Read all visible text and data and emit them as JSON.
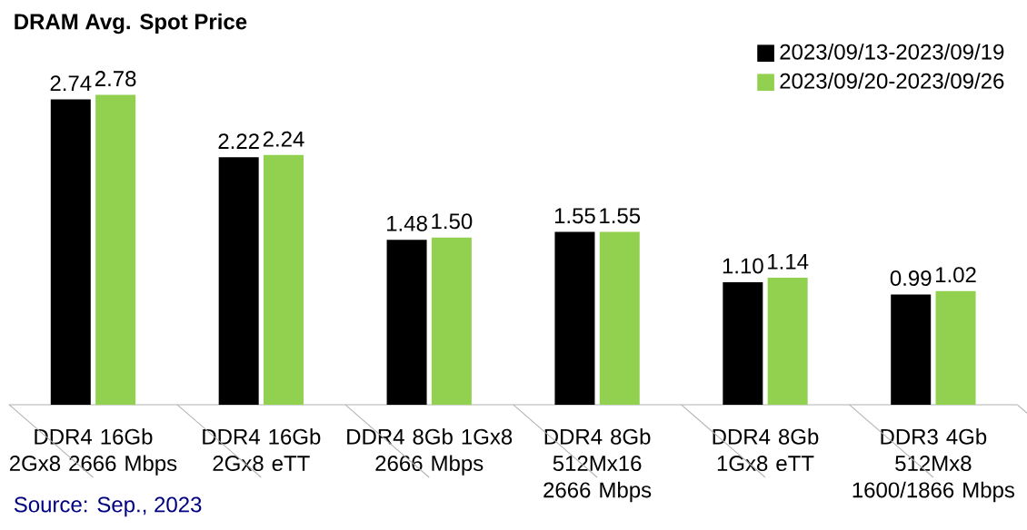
{
  "chart_data": {
    "type": "bar",
    "title": "DRAM Avg. Spot Price",
    "categories": [
      "DDR4 16Gb 2Gx8 2666 Mbps",
      "DDR4 16Gb 2Gx8 eTT",
      "DDR4 8Gb 1Gx8 2666 Mbps",
      "DDR4 8Gb 512Mx16 2666 Mbps",
      "DDR4 8Gb 1Gx8 eTT",
      "DDR3 4Gb 512Mx8 1600/1866 Mbps"
    ],
    "series": [
      {
        "name": "2023/09/13-2023/09/19",
        "color": "#000000",
        "values": [
          2.74,
          2.22,
          1.48,
          1.55,
          1.1,
          0.99
        ],
        "value_labels": [
          "2.74",
          "2.22",
          "1.48",
          "1.55",
          "1.10",
          "0.99"
        ]
      },
      {
        "name": "2023/09/20-2023/09/26",
        "color": "#92d050",
        "values": [
          2.78,
          2.24,
          1.5,
          1.55,
          1.14,
          1.02
        ],
        "value_labels": [
          "2.78",
          "2.24",
          "1.50",
          "1.55",
          "1.14",
          "1.02"
        ]
      }
    ],
    "legend": "top right",
    "annotations": [
      "Source: Sep., 2023"
    ]
  }
}
